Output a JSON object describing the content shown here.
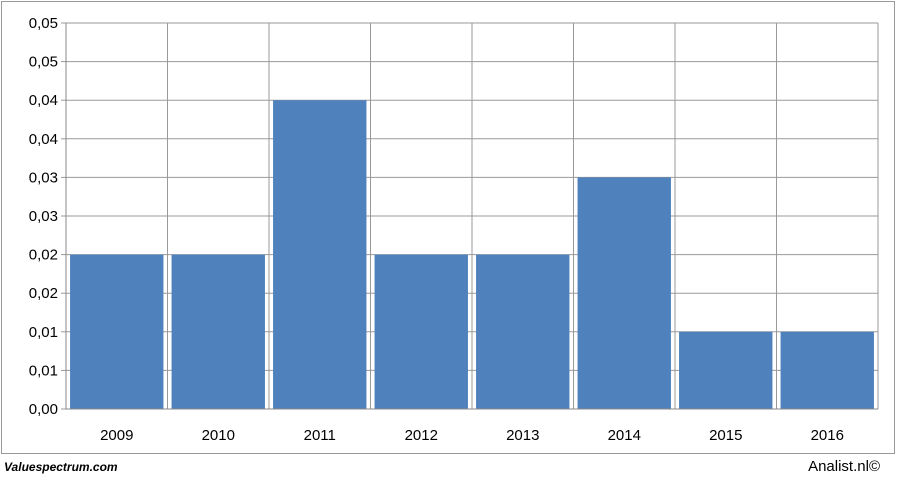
{
  "chart_data": {
    "type": "bar",
    "categories": [
      "2009",
      "2010",
      "2011",
      "2012",
      "2013",
      "2014",
      "2015",
      "2016"
    ],
    "values": [
      0.02,
      0.02,
      0.04,
      0.02,
      0.02,
      0.03,
      0.01,
      0.01
    ],
    "color": "#4f81bd",
    "ylim": [
      0,
      0.05
    ],
    "yticks": [
      {
        "value": 0,
        "label": "0,00"
      },
      {
        "value": 0.005,
        "label": "0,01"
      },
      {
        "value": 0.01,
        "label": "0,01"
      },
      {
        "value": 0.015,
        "label": "0,02"
      },
      {
        "value": 0.02,
        "label": "0,02"
      },
      {
        "value": 0.025,
        "label": "0,03"
      },
      {
        "value": 0.03,
        "label": "0,03"
      },
      {
        "value": 0.035,
        "label": "0,04"
      },
      {
        "value": 0.04,
        "label": "0,04"
      },
      {
        "value": 0.045,
        "label": "0,05"
      },
      {
        "value": 0.05,
        "label": "0,05"
      }
    ],
    "grid": true
  },
  "footer": {
    "left": "Valuespectrum.com",
    "right": "Analist.nl©"
  }
}
